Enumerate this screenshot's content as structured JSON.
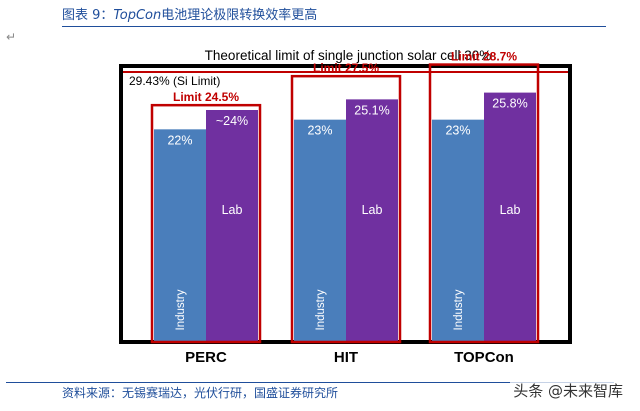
{
  "caption": {
    "label": "图表 9：",
    "topic": "TopCon",
    "text": "电池理论极限转换效率更高"
  },
  "source": "资料来源：无锡赛瑞达，光伏行研，国盛证券研究所",
  "watermark": "头条 @未来智库",
  "chart_data": {
    "type": "bar",
    "title": "Theoretical limit of single junction solar cell 30%",
    "annotation": "29.43% (Si Limit)",
    "categories": [
      "PERC",
      "HIT",
      "TOPCon"
    ],
    "series": [
      {
        "name": "Industry",
        "values": [
          22,
          23,
          23
        ],
        "labels": [
          "22%",
          "23%",
          "23%"
        ],
        "color": "#4a7ebb"
      },
      {
        "name": "Lab",
        "values": [
          24,
          25.1,
          25.8
        ],
        "labels": [
          "~24%",
          "25.1%",
          "25.8%"
        ],
        "color": "#7030a0"
      }
    ],
    "limits": {
      "values": [
        24.5,
        27.5,
        28.7
      ],
      "labels": [
        "Limit 24.5%",
        "Limit 27.5%",
        "Limit 28.7%"
      ],
      "color": "#c00000"
    },
    "ylim": [
      0,
      30
    ],
    "grid": false,
    "legend": "none"
  }
}
